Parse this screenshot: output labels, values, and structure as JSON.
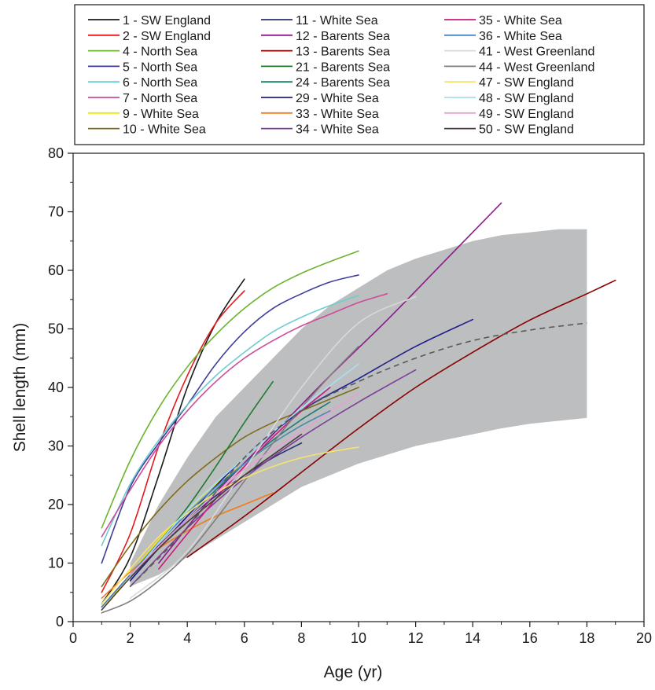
{
  "chart_data": {
    "type": "line",
    "xlabel": "Age (yr)",
    "ylabel": "Shell length (mm)",
    "xlim": [
      0,
      20
    ],
    "ylim": [
      0,
      80
    ],
    "x_ticks": [
      "0",
      "2",
      "4",
      "6",
      "8",
      "10",
      "12",
      "14",
      "16",
      "18",
      "20"
    ],
    "y_ticks": [
      "0",
      "10",
      "20",
      "30",
      "40",
      "50",
      "60",
      "70",
      "80"
    ],
    "legend_position": "top",
    "grid": false,
    "envelope": {
      "x": [
        2,
        3,
        4,
        5,
        6,
        7,
        8,
        9,
        10,
        11,
        12,
        13,
        14,
        15,
        16,
        17,
        18
      ],
      "upper": [
        10,
        20,
        28,
        35,
        40,
        45,
        50,
        54,
        57,
        60,
        62,
        63.5,
        65,
        66,
        66.5,
        67,
        67
      ],
      "lower": [
        6,
        8,
        11,
        14,
        17,
        20,
        23,
        25,
        27,
        28.5,
        30,
        31,
        32,
        33,
        33.8,
        34.3,
        34.8
      ],
      "color": "#bcbec0"
    },
    "mean_curve": {
      "x": [
        2,
        4,
        6,
        8,
        10,
        12,
        14,
        16,
        18
      ],
      "y": [
        6,
        16,
        28,
        36,
        41,
        45,
        48,
        49.8,
        51
      ],
      "color": "#58595b"
    },
    "series": [
      {
        "name": "1 - SW England",
        "color": "#1a1a1a",
        "x": [
          1,
          2,
          3,
          4,
          5,
          6
        ],
        "y": [
          3,
          11,
          25,
          40,
          51,
          58.5
        ]
      },
      {
        "name": "2 - SW England",
        "color": "#e31a1c",
        "x": [
          1,
          2,
          3,
          4,
          5,
          6
        ],
        "y": [
          5,
          15,
          30,
          42,
          51,
          56.5
        ]
      },
      {
        "name": "4 - North Sea",
        "color": "#6ab42d",
        "x": [
          1,
          2,
          3,
          4,
          5,
          6,
          7,
          8,
          9,
          10
        ],
        "y": [
          16,
          27.5,
          36.5,
          43.5,
          49,
          53.5,
          57,
          59.5,
          61.5,
          63.3
        ]
      },
      {
        "name": "5 - North Sea",
        "color": "#3f3f99",
        "x": [
          1,
          2,
          3,
          4,
          5,
          6,
          7,
          8,
          9,
          10
        ],
        "y": [
          10,
          23,
          30.5,
          37,
          44,
          49.5,
          53.5,
          56,
          58,
          59.2
        ]
      },
      {
        "name": "6 - North Sea",
        "color": "#6dcdd0",
        "x": [
          1,
          2,
          3,
          4,
          5,
          6,
          7,
          8,
          9,
          10
        ],
        "y": [
          13,
          23.5,
          31,
          37,
          42,
          46,
          49.5,
          52,
          54,
          55.7
        ]
      },
      {
        "name": "7 - North Sea",
        "color": "#cc4c99",
        "x": [
          1,
          2,
          3,
          4,
          5,
          6,
          7,
          8,
          9,
          10,
          11
        ],
        "y": [
          14.5,
          22.5,
          30,
          36,
          41,
          45,
          48,
          50.5,
          52.5,
          54.5,
          56
        ]
      },
      {
        "name": "9 - White Sea",
        "color": "#f2e500",
        "x": [
          1,
          2,
          3,
          4,
          5,
          6,
          7,
          8,
          9
        ],
        "y": [
          2,
          8,
          14,
          19,
          23.5,
          27,
          30.5,
          33.5,
          36
        ]
      },
      {
        "name": "10 - White Sea",
        "color": "#7f6b1a",
        "x": [
          1,
          2,
          3,
          4,
          5,
          6,
          7,
          8,
          9,
          10
        ],
        "y": [
          6,
          13,
          19,
          24,
          28,
          31.5,
          34,
          36,
          38,
          40
        ]
      },
      {
        "name": "11 - White Sea",
        "color": "#2c2c6e",
        "x": [
          1,
          2,
          3,
          4,
          5,
          6,
          7,
          8
        ],
        "y": [
          2.5,
          8,
          13,
          17.5,
          21.5,
          25,
          28,
          30.5
        ]
      },
      {
        "name": "12 - Barents Sea",
        "color": "#8b1a8b",
        "x": [
          3,
          5,
          7,
          9,
          11,
          13,
          15
        ],
        "y": [
          10,
          22,
          32,
          42,
          51.5,
          61.5,
          71.5
        ]
      },
      {
        "name": "13 - Barents Sea",
        "color": "#8b0000",
        "x": [
          4,
          6,
          8,
          10,
          12,
          14,
          16,
          18,
          19
        ],
        "y": [
          11,
          18,
          25.5,
          33,
          40,
          46,
          51.5,
          56,
          58.3
        ]
      },
      {
        "name": "21 - Barents Sea",
        "color": "#1f7a2e",
        "x": [
          2,
          3,
          4,
          5,
          6,
          7
        ],
        "y": [
          8,
          13.5,
          19.5,
          26.5,
          34,
          41
        ]
      },
      {
        "name": "24 - Barents Sea",
        "color": "#1a7a6e",
        "x": [
          2,
          3,
          4,
          5,
          6,
          7,
          8,
          9
        ],
        "y": [
          7,
          12.5,
          17.5,
          22.5,
          27,
          31,
          34.5,
          37.5
        ]
      },
      {
        "name": "29 - White Sea",
        "color": "#1f1f8b",
        "x": [
          2,
          4,
          6,
          8,
          10,
          12,
          14
        ],
        "y": [
          7,
          18,
          28,
          36,
          41.5,
          47,
          51.6
        ]
      },
      {
        "name": "33 - White Sea",
        "color": "#f07d1a",
        "x": [
          1,
          2,
          3,
          4,
          5,
          6,
          7
        ],
        "y": [
          4,
          8.5,
          12.5,
          15.5,
          18,
          20,
          22
        ]
      },
      {
        "name": "34 - White Sea",
        "color": "#7f3f99",
        "x": [
          2,
          4,
          6,
          8,
          10,
          12
        ],
        "y": [
          6,
          16,
          24.5,
          31.5,
          37.5,
          43
        ]
      },
      {
        "name": "35 - White Sea",
        "color": "#cc1a7f",
        "x": [
          3,
          4,
          5,
          6,
          7,
          8,
          9
        ],
        "y": [
          9,
          15,
          21,
          26.5,
          31.5,
          36,
          40
        ]
      },
      {
        "name": "36 - White Sea",
        "color": "#4a86c0",
        "x": [
          1,
          2,
          3,
          4,
          5,
          6,
          7,
          8,
          9
        ],
        "y": [
          2.5,
          8,
          13.5,
          18.5,
          23,
          27,
          30.5,
          33.5,
          36
        ]
      },
      {
        "name": "41 - West Greenland",
        "color": "#d9d9d9",
        "x": [
          2,
          4,
          6,
          8,
          10,
          12
        ],
        "y": [
          4,
          12,
          26,
          40,
          51,
          55.5
        ]
      },
      {
        "name": "44 - West Greenland",
        "color": "#7f7f7f",
        "x": [
          1,
          2,
          3,
          4,
          5,
          6,
          7,
          8,
          9,
          10
        ],
        "y": [
          1.5,
          3.5,
          7,
          11.5,
          17.5,
          24,
          30.5,
          36.5,
          42,
          47
        ]
      },
      {
        "name": "47 - SW England",
        "color": "#f7e36b",
        "x": [
          1,
          2,
          3,
          4,
          5,
          6,
          7,
          8,
          9,
          10
        ],
        "y": [
          3,
          9,
          14.5,
          18.5,
          22,
          24.5,
          26.5,
          28,
          29,
          29.8
        ]
      },
      {
        "name": "48 - SW England",
        "color": "#a8dff0",
        "x": [
          2,
          4,
          6,
          8,
          10
        ],
        "y": [
          7.5,
          19,
          28,
          36.5,
          44
        ]
      },
      {
        "name": "49 - SW England",
        "color": "#e8a0d4",
        "x": [
          2,
          4,
          6,
          8,
          10
        ],
        "y": [
          8,
          17.5,
          26,
          32.5,
          39
        ]
      },
      {
        "name": "50 - SW England",
        "color": "#4d3b3b",
        "x": [
          1,
          2,
          3,
          4,
          5,
          6,
          7,
          8
        ],
        "y": [
          2,
          7.5,
          12.5,
          17,
          21,
          25,
          28.5,
          32
        ]
      }
    ]
  }
}
